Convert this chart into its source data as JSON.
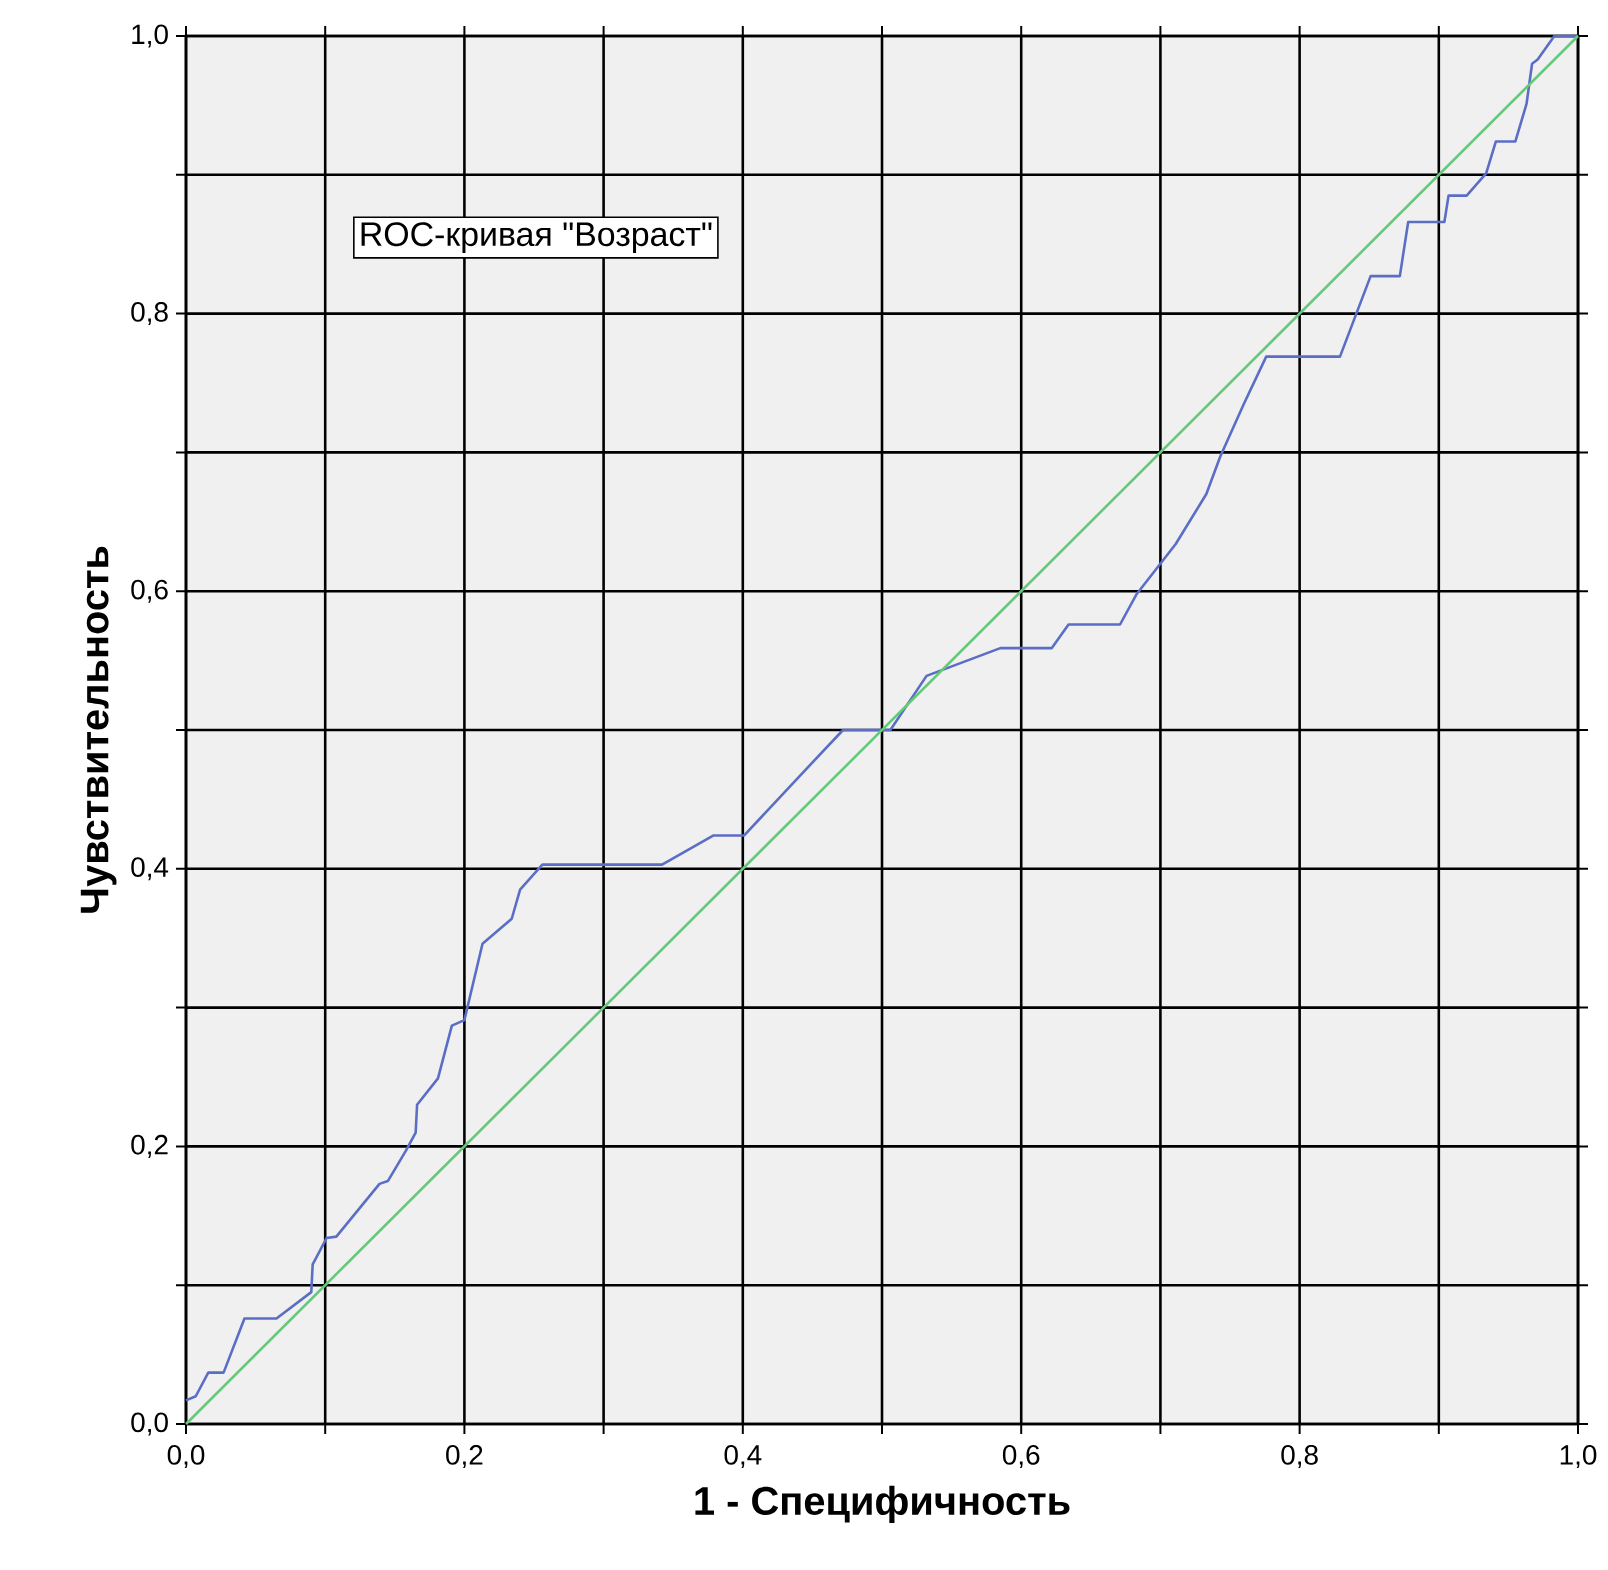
{
  "chart_data": {
    "type": "line",
    "title": "ROC-кривая \"Возраст\"",
    "xlabel": "1 - Специфичность",
    "ylabel": "Чувствительность",
    "xlim": [
      0,
      1
    ],
    "ylim": [
      0,
      1
    ],
    "grid": true,
    "line_style": "solid",
    "xticks": [
      {
        "value": 0,
        "label": "0,0"
      },
      {
        "value": 0.1,
        "label": null
      },
      {
        "value": 0.2,
        "label": "0,2"
      },
      {
        "value": 0.3,
        "label": null
      },
      {
        "value": 0.4,
        "label": "0,4"
      },
      {
        "value": 0.5,
        "label": null
      },
      {
        "value": 0.6,
        "label": "0,6"
      },
      {
        "value": 0.7,
        "label": null
      },
      {
        "value": 0.8,
        "label": "0,8"
      },
      {
        "value": 0.9,
        "label": null
      },
      {
        "value": 1,
        "label": "1,0"
      }
    ],
    "yticks": [
      {
        "value": 0,
        "label": "0,0"
      },
      {
        "value": 0.1,
        "label": null
      },
      {
        "value": 0.2,
        "label": "0,2"
      },
      {
        "value": 0.3,
        "label": null
      },
      {
        "value": 0.4,
        "label": "0,4"
      },
      {
        "value": 0.5,
        "label": null
      },
      {
        "value": 0.6,
        "label": "0,6"
      },
      {
        "value": 0.7,
        "label": null
      },
      {
        "value": 0.8,
        "label": "0,8"
      },
      {
        "value": 0.9,
        "label": null
      },
      {
        "value": 1,
        "label": "1,0"
      }
    ],
    "series": [
      {
        "color": "#5b6ec6",
        "x": [
          0,
          0.007,
          0.016,
          0.027,
          0.042,
          0.065,
          0.09,
          0.091,
          0.101,
          0.108,
          0.139,
          0.145,
          0.158,
          0.165,
          0.166,
          0.181,
          0.191,
          0.2,
          0.213,
          0.234,
          0.24,
          0.256,
          0.342,
          0.379,
          0.401,
          0.441,
          0.472,
          0.506,
          0.532,
          0.585,
          0.622,
          0.634,
          0.671,
          0.683,
          0.711,
          0.733,
          0.743,
          0.76,
          0.776,
          0.829,
          0.851,
          0.872,
          0.878,
          0.904,
          0.907,
          0.92,
          0.934,
          0.941,
          0.955,
          0.963,
          0.967,
          0.971,
          0.983,
          1
        ],
        "values": [
          0.017,
          0.02,
          0.037,
          0.037,
          0.076,
          0.076,
          0.095,
          0.115,
          0.134,
          0.135,
          0.173,
          0.175,
          0.197,
          0.21,
          0.23,
          0.249,
          0.287,
          0.291,
          0.346,
          0.364,
          0.385,
          0.403,
          0.403,
          0.424,
          0.424,
          0.467,
          0.5,
          0.5,
          0.539,
          0.559,
          0.559,
          0.576,
          0.576,
          0.598,
          0.634,
          0.67,
          0.697,
          0.735,
          0.769,
          0.769,
          0.827,
          0.827,
          0.866,
          0.866,
          0.885,
          0.885,
          0.901,
          0.924,
          0.924,
          0.951,
          0.98,
          0.983,
          1,
          1
        ]
      },
      {
        "color": "#66c87a",
        "x": [
          0,
          1
        ],
        "values": [
          0,
          1
        ]
      }
    ]
  }
}
